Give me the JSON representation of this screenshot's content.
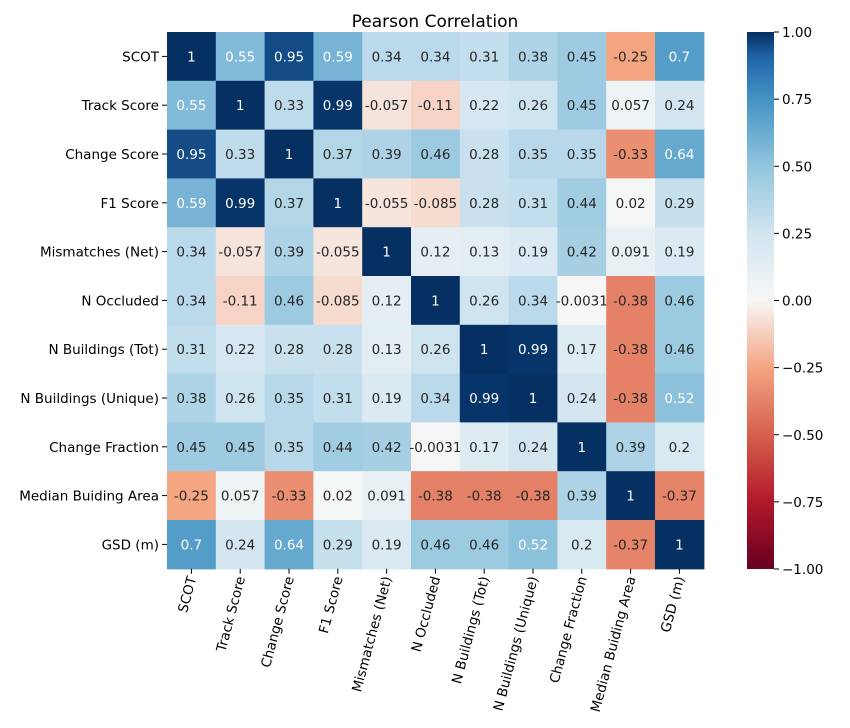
{
  "chart_data": {
    "type": "heatmap",
    "title": "Pearson Correlation",
    "labels": [
      "SCOT",
      "Track Score",
      "Change Score",
      "F1 Score",
      "Mismatches (Net)",
      "N Occluded",
      "N Buildings (Tot)",
      "N Buildings (Unique)",
      "Change Fraction",
      "Median Buiding Area",
      "GSD (m)"
    ],
    "values": [
      [
        1,
        0.55,
        0.95,
        0.59,
        0.34,
        0.34,
        0.31,
        0.38,
        0.45,
        -0.25,
        0.7
      ],
      [
        0.55,
        1,
        0.33,
        0.99,
        -0.057,
        -0.11,
        0.22,
        0.26,
        0.45,
        0.057,
        0.24
      ],
      [
        0.95,
        0.33,
        1,
        0.37,
        0.39,
        0.46,
        0.28,
        0.35,
        0.35,
        -0.33,
        0.64
      ],
      [
        0.59,
        0.99,
        0.37,
        1,
        -0.055,
        -0.085,
        0.28,
        0.31,
        0.44,
        0.02,
        0.29
      ],
      [
        0.34,
        -0.057,
        0.39,
        -0.055,
        1,
        0.12,
        0.13,
        0.19,
        0.42,
        0.091,
        0.19
      ],
      [
        0.34,
        -0.11,
        0.46,
        -0.085,
        0.12,
        1,
        0.26,
        0.34,
        -0.0031,
        -0.38,
        0.46
      ],
      [
        0.31,
        0.22,
        0.28,
        0.28,
        0.13,
        0.26,
        1,
        0.99,
        0.17,
        -0.38,
        0.46
      ],
      [
        0.38,
        0.26,
        0.35,
        0.31,
        0.19,
        0.34,
        0.99,
        1,
        0.24,
        -0.38,
        0.52
      ],
      [
        0.45,
        0.45,
        0.35,
        0.44,
        0.42,
        -0.0031,
        0.17,
        0.24,
        1,
        0.39,
        0.2
      ],
      [
        -0.25,
        0.057,
        -0.33,
        0.02,
        0.091,
        -0.38,
        -0.38,
        -0.38,
        0.39,
        1,
        -0.37
      ],
      [
        0.7,
        0.24,
        0.64,
        0.29,
        0.19,
        0.46,
        0.46,
        0.52,
        0.2,
        -0.37,
        1
      ]
    ],
    "value_labels": [
      [
        "1",
        "0.55",
        "0.95",
        "0.59",
        "0.34",
        "0.34",
        "0.31",
        "0.38",
        "0.45",
        "-0.25",
        "0.7"
      ],
      [
        "0.55",
        "1",
        "0.33",
        "0.99",
        "-0.057",
        "-0.11",
        "0.22",
        "0.26",
        "0.45",
        "0.057",
        "0.24"
      ],
      [
        "0.95",
        "0.33",
        "1",
        "0.37",
        "0.39",
        "0.46",
        "0.28",
        "0.35",
        "0.35",
        "-0.33",
        "0.64"
      ],
      [
        "0.59",
        "0.99",
        "0.37",
        "1",
        "-0.055",
        "-0.085",
        "0.28",
        "0.31",
        "0.44",
        "0.02",
        "0.29"
      ],
      [
        "0.34",
        "-0.057",
        "0.39",
        "-0.055",
        "1",
        "0.12",
        "0.13",
        "0.19",
        "0.42",
        "0.091",
        "0.19"
      ],
      [
        "0.34",
        "-0.11",
        "0.46",
        "-0.085",
        "0.12",
        "1",
        "0.26",
        "0.34",
        "-0.0031",
        "-0.38",
        "0.46"
      ],
      [
        "0.31",
        "0.22",
        "0.28",
        "0.28",
        "0.13",
        "0.26",
        "1",
        "0.99",
        "0.17",
        "-0.38",
        "0.46"
      ],
      [
        "0.38",
        "0.26",
        "0.35",
        "0.31",
        "0.19",
        "0.34",
        "0.99",
        "1",
        "0.24",
        "-0.38",
        "0.52"
      ],
      [
        "0.45",
        "0.45",
        "0.35",
        "0.44",
        "0.42",
        "-0.0031",
        "0.17",
        "0.24",
        "1",
        "0.39",
        "0.2"
      ],
      [
        "-0.25",
        "0.057",
        "-0.33",
        "0.02",
        "0.091",
        "-0.38",
        "-0.38",
        "-0.38",
        "0.39",
        "1",
        "-0.37"
      ],
      [
        "0.7",
        "0.24",
        "0.64",
        "0.29",
        "0.19",
        "0.46",
        "0.46",
        "0.52",
        "0.2",
        "-0.37",
        "1"
      ]
    ],
    "colorbar": {
      "range": [
        -1,
        1
      ],
      "colormap": "RdBu",
      "ticks": [
        1,
        0.75,
        0.5,
        0.25,
        0,
        -0.25,
        -0.5,
        -0.75,
        -1
      ],
      "tick_labels": [
        "1.00",
        "0.75",
        "0.50",
        "0.25",
        "0.00",
        "−0.25",
        "−0.50",
        "−0.75",
        "−1.00"
      ]
    }
  }
}
